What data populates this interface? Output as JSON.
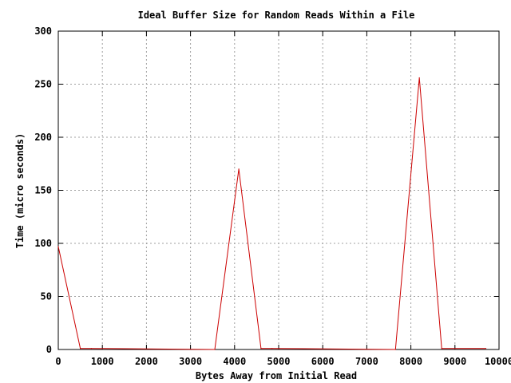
{
  "chart_data": {
    "type": "line",
    "title": "Ideal Buffer Size for Random Reads Within a File",
    "xlabel": "Bytes Away from Initial Read",
    "ylabel": "Time (micro seconds)",
    "xlim": [
      0,
      10000
    ],
    "ylim": [
      0,
      300
    ],
    "xticks": [
      0,
      1000,
      2000,
      3000,
      4000,
      5000,
      6000,
      7000,
      8000,
      9000,
      10000
    ],
    "xtick_labels": [
      "0",
      "1000",
      "2000",
      "3000",
      "4000",
      "5000",
      "6000",
      "7000",
      "8000",
      "9000",
      "10000"
    ],
    "yticks": [
      0,
      50,
      100,
      150,
      200,
      250,
      300
    ],
    "ytick_labels": [
      "0",
      "50",
      "100",
      "150",
      "200",
      "250",
      "300"
    ],
    "grid": true,
    "legend": "none",
    "series": [
      {
        "color": "#cc0000",
        "x": [
          0,
          500,
          750,
          3550,
          4096,
          4600,
          4850,
          7650,
          8192,
          8700,
          9700
        ],
        "y": [
          97,
          1,
          1,
          0,
          170,
          1,
          1,
          0,
          256,
          1,
          1
        ]
      }
    ]
  }
}
